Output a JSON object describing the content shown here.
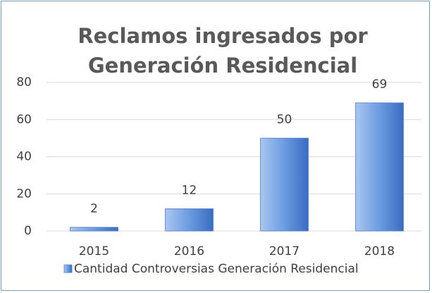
{
  "chart_data": {
    "type": "bar",
    "title": "Reclamos ingresados por Generación Residencial",
    "categories": [
      "2015",
      "2016",
      "2017",
      "2018"
    ],
    "series": [
      {
        "name": "Cantidad Controversias Generación Residencial",
        "color": "#4a7fd4",
        "values": [
          2,
          12,
          50,
          69
        ]
      }
    ],
    "ylim": [
      0,
      80
    ],
    "yticks": [
      0,
      20,
      40,
      60,
      80
    ],
    "grid": true,
    "legend": "bottom"
  }
}
